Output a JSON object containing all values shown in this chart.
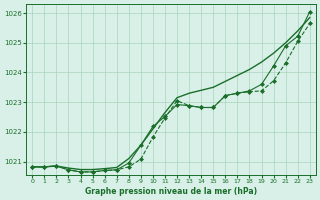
{
  "title": "Graphe pression niveau de la mer (hPa)",
  "bg_color": "#d8f0e8",
  "line_color": "#1a6e2a",
  "grid_color": "#aad4bc",
  "xlabel_color": "#1a6e2a",
  "xlim": [
    -0.5,
    23.5
  ],
  "ylim": [
    1020.55,
    1026.3
  ],
  "yticks": [
    1021,
    1022,
    1023,
    1024,
    1025,
    1026
  ],
  "xticks": [
    0,
    1,
    2,
    3,
    4,
    5,
    6,
    7,
    8,
    9,
    10,
    11,
    12,
    13,
    14,
    15,
    16,
    17,
    18,
    19,
    20,
    21,
    22,
    23
  ],
  "smooth_line": [
    1020.82,
    1020.82,
    1020.85,
    1020.78,
    1020.73,
    1020.73,
    1020.76,
    1020.8,
    1021.1,
    1021.55,
    1022.1,
    1022.65,
    1023.15,
    1023.3,
    1023.4,
    1023.5,
    1023.7,
    1023.9,
    1024.1,
    1024.35,
    1024.65,
    1025.0,
    1025.4,
    1025.85
  ],
  "marker_line1": [
    1020.82,
    1020.82,
    1020.85,
    1020.72,
    1020.65,
    1020.65,
    1020.7,
    1020.72,
    1020.82,
    1021.08,
    1021.82,
    1022.47,
    1023.05,
    1022.88,
    1022.82,
    1022.82,
    1023.22,
    1023.3,
    1023.35,
    1023.38,
    1023.72,
    1024.32,
    1025.05,
    1025.65
  ],
  "marker_line2": [
    1020.82,
    1020.82,
    1020.85,
    1020.72,
    1020.65,
    1020.65,
    1020.7,
    1020.72,
    1020.95,
    1021.55,
    1022.18,
    1022.52,
    1022.92,
    1022.88,
    1022.82,
    1022.82,
    1023.22,
    1023.3,
    1023.38,
    1023.6,
    1024.22,
    1024.9,
    1025.22,
    1026.05
  ]
}
